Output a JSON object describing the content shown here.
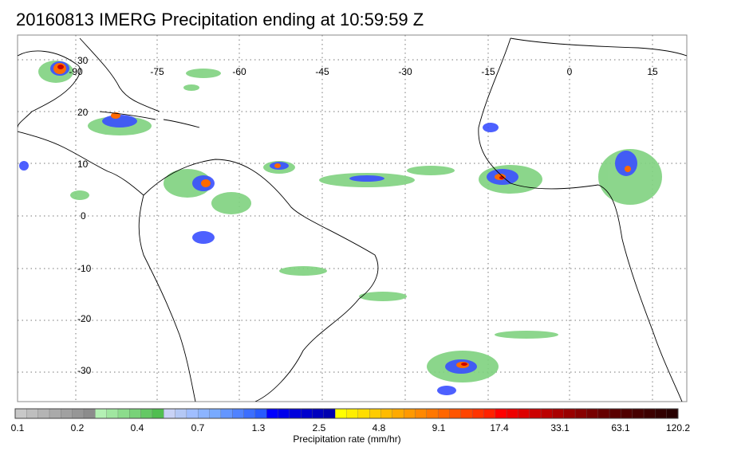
{
  "title": "20160813 IMERG Precipitation ending at 10:59:59 Z",
  "map": {
    "lon_labels": [
      "-90",
      "-75",
      "-60",
      "-45",
      "-30",
      "-15",
      "0",
      "15"
    ],
    "lat_labels": [
      "30",
      "20",
      "10",
      "0",
      "-10",
      "-20",
      "-30"
    ],
    "grid": true,
    "coast_color": "#000000"
  },
  "colorbar": {
    "title": "Precipitation rate (mm/hr)",
    "tick_labels": [
      "0.1",
      "0.2",
      "0.4",
      "0.7",
      "1.3",
      "2.5",
      "4.8",
      "9.1",
      "17.4",
      "33.1",
      "63.1",
      "120.2"
    ],
    "colors": [
      "#c8c8c8",
      "#bebebe",
      "#b4b4b4",
      "#aaaaaa",
      "#a0a0a0",
      "#969696",
      "#8c8c8c",
      "#b4f0b4",
      "#a0e6a0",
      "#8cdc8c",
      "#78d278",
      "#64c864",
      "#50be50",
      "#c8d2f5",
      "#b4c8f5",
      "#a0beff",
      "#8cb4ff",
      "#78aaff",
      "#6496ff",
      "#5082ff",
      "#3c6eff",
      "#285aff",
      "#0000ff",
      "#0000eb",
      "#0000dc",
      "#0000cd",
      "#0000be",
      "#0000af",
      "#ffff00",
      "#ffee00",
      "#ffdd00",
      "#ffcc00",
      "#ffbb00",
      "#ffaa00",
      "#ff9900",
      "#ff8800",
      "#ff7700",
      "#ff6600",
      "#ff5500",
      "#ff4400",
      "#ff3300",
      "#ff2200",
      "#ff0000",
      "#ee0000",
      "#dd0000",
      "#cc0000",
      "#bb0000",
      "#aa0000",
      "#990000",
      "#880000",
      "#770000",
      "#660000",
      "#5a0000",
      "#500000",
      "#460000",
      "#3c0000",
      "#320000",
      "#280000"
    ]
  }
}
